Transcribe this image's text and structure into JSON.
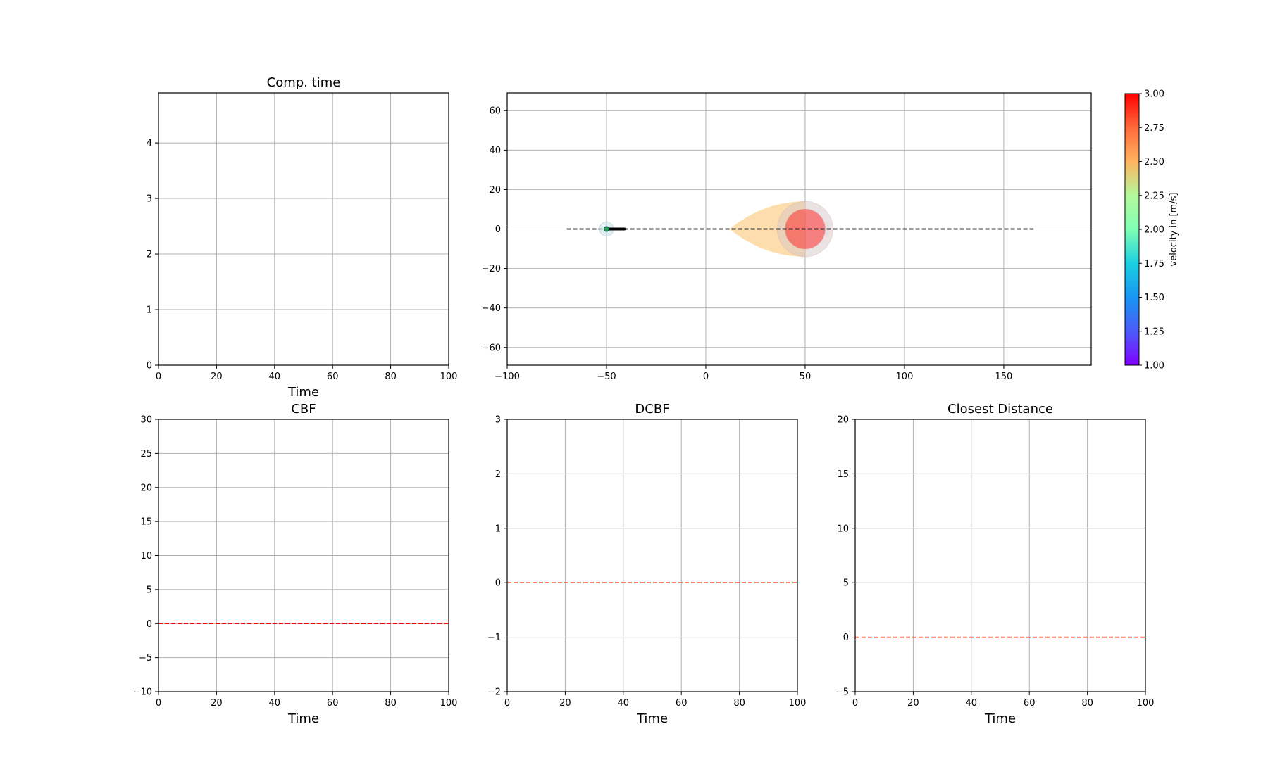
{
  "chart_data": [
    {
      "id": "comp-time",
      "type": "line",
      "title": "Comp. time",
      "xlabel": "Time",
      "ylabel": "",
      "xlim": [
        0,
        100
      ],
      "ylim": [
        0,
        4.9
      ],
      "xticks": [
        0,
        20,
        40,
        60,
        80,
        100
      ],
      "yticks": [
        0,
        1,
        2,
        3,
        4
      ],
      "grid": true,
      "series": [],
      "reference_line": null
    },
    {
      "id": "trajectory",
      "type": "scatter",
      "title": "",
      "xlabel": "",
      "ylabel": "",
      "xlim": [
        -100,
        194
      ],
      "ylim": [
        -69,
        69
      ],
      "xticks": [
        -100,
        -50,
        0,
        50,
        100,
        150
      ],
      "yticks": [
        -60,
        -40,
        -20,
        0,
        20,
        40,
        60
      ],
      "grid": true,
      "reference_path": {
        "x": [
          -70,
          165
        ],
        "y": [
          0,
          0
        ],
        "color": "#000000",
        "style": "dashed"
      },
      "ego": {
        "x": -50,
        "y": 0,
        "velocity": 2.0,
        "trail_x": [
          -50,
          -41
        ],
        "trail_y": [
          0,
          0
        ]
      },
      "obstacle": {
        "x": 50,
        "y": 0,
        "radius": 10,
        "outer_radius": 14,
        "cone_tip_x": 12,
        "cone_half_height": 14,
        "color": "#ff3030",
        "outer_color": "#d8c8c8",
        "cone_color": "#fdc776"
      },
      "colorbar": {
        "label": "velocity in [m/s]",
        "min": 1.0,
        "max": 3.0,
        "ticks": [
          3.0,
          2.75,
          2.5,
          2.25,
          2.0,
          1.75,
          1.5,
          1.25,
          1.0
        ],
        "tick_labels": [
          "3.00",
          "2.75",
          "2.50",
          "2.25",
          "2.00",
          "1.75",
          "1.50",
          "1.25",
          "1.00"
        ],
        "colormap": "rainbow"
      }
    },
    {
      "id": "cbf",
      "type": "line",
      "title": "CBF",
      "xlabel": "Time",
      "ylabel": "",
      "xlim": [
        0,
        100
      ],
      "ylim": [
        -10,
        30
      ],
      "xticks": [
        0,
        20,
        40,
        60,
        80,
        100
      ],
      "yticks": [
        -10,
        -5,
        0,
        5,
        10,
        15,
        20,
        25,
        30
      ],
      "grid": true,
      "series": [],
      "reference_line": {
        "y": 0,
        "color": "#ff0000",
        "style": "dashed"
      }
    },
    {
      "id": "dcbf",
      "type": "line",
      "title": "DCBF",
      "xlabel": "Time",
      "ylabel": "",
      "xlim": [
        0,
        100
      ],
      "ylim": [
        -2,
        3
      ],
      "xticks": [
        0,
        20,
        40,
        60,
        80,
        100
      ],
      "yticks": [
        -2,
        -1,
        0,
        1,
        2,
        3
      ],
      "grid": true,
      "series": [],
      "reference_line": {
        "y": 0,
        "color": "#ff0000",
        "style": "dashed"
      }
    },
    {
      "id": "closest-distance",
      "type": "line",
      "title": "Closest Distance",
      "xlabel": "Time",
      "ylabel": "",
      "xlim": [
        0,
        100
      ],
      "ylim": [
        -5,
        20
      ],
      "xticks": [
        0,
        20,
        40,
        60,
        80,
        100
      ],
      "yticks": [
        -5,
        0,
        5,
        10,
        15,
        20
      ],
      "grid": true,
      "series": [],
      "reference_line": {
        "y": 0,
        "color": "#ff0000",
        "style": "dashed"
      }
    }
  ]
}
